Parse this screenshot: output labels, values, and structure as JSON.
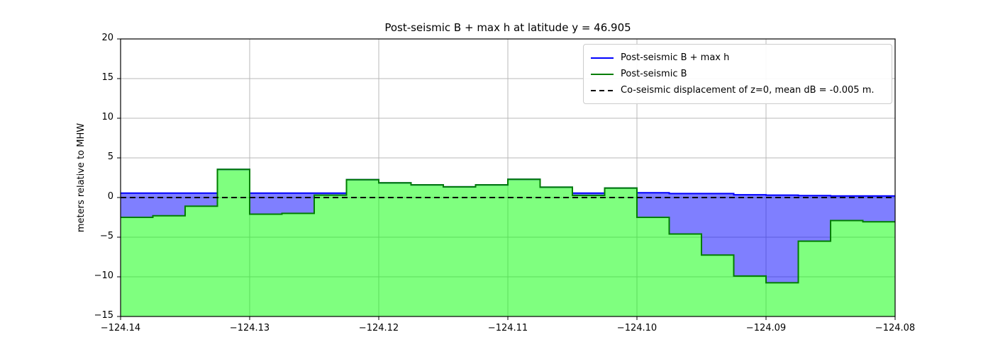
{
  "title": "Post-seismic B + max h at latitude y = 46.905",
  "ylabel": "meters relative to MHW",
  "legend": {
    "items": [
      {
        "label": "Post-seismic B + max h",
        "color": "#0000ff",
        "style": "solid"
      },
      {
        "label": "Post-seismic B",
        "color": "#007d00",
        "style": "solid"
      },
      {
        "label": "Co-seismic displacement of z=0, mean dB = -0.005 m.",
        "color": "#000000",
        "style": "dashed"
      }
    ]
  },
  "chart_data": {
    "type": "area",
    "title": "Post-seismic B + max h at latitude y = 46.905",
    "xlabel": "",
    "ylabel": "meters relative to MHW",
    "xlim": [
      -124.14,
      -124.08
    ],
    "ylim": [
      -15,
      20
    ],
    "grid": true,
    "legend_position": "upper right",
    "x_start": -124.14,
    "x_step": 0.0025,
    "x_tick_labels": [
      "−124.14",
      "−124.13",
      "−124.12",
      "−124.11",
      "−124.10",
      "−124.09",
      "−124.08"
    ],
    "x_tick_values": [
      -124.14,
      -124.13,
      -124.12,
      -124.11,
      -124.1,
      -124.09,
      -124.08
    ],
    "y_tick_labels": [
      "20",
      "15",
      "10",
      "5",
      "0",
      "−5",
      "−10",
      "−15"
    ],
    "y_tick_values": [
      20,
      15,
      10,
      5,
      0,
      -5,
      -10,
      -15
    ],
    "series": [
      {
        "name": "Post-seismic B + max h",
        "type": "step-line",
        "color": "#0000ff",
        "fill_to": "Post-seismic B",
        "fill_color_rgba": "rgba(0,0,255,0.5)",
        "values": [
          0.55,
          0.55,
          0.55,
          3.55,
          0.55,
          0.55,
          0.55,
          2.25,
          1.85,
          1.6,
          1.35,
          1.6,
          2.3,
          1.3,
          0.55,
          1.2,
          0.6,
          0.5,
          0.5,
          0.35,
          0.3,
          0.25,
          0.2,
          0.2
        ]
      },
      {
        "name": "Post-seismic B",
        "type": "step-line",
        "color": "#007d00",
        "fill_to": "bottom",
        "fill_color_rgba": "rgba(0,255,0,0.5)",
        "values": [
          -2.5,
          -2.3,
          -1.1,
          3.55,
          -2.1,
          -2.0,
          0.3,
          2.25,
          1.85,
          1.6,
          1.35,
          1.6,
          2.3,
          1.3,
          0.27,
          1.2,
          -2.5,
          -4.6,
          -7.25,
          -9.9,
          -10.75,
          -5.5,
          -2.9,
          -3.05
        ]
      },
      {
        "name": "Co-seismic displacement of z=0",
        "type": "hline-dashed",
        "color": "#000000",
        "value": -0.005
      }
    ]
  }
}
